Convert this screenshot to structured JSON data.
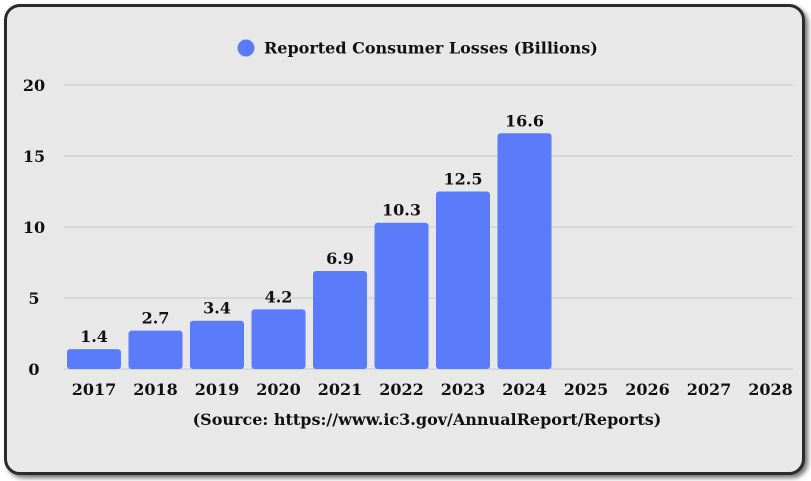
{
  "chart_data": {
    "type": "bar",
    "categories": [
      "2017",
      "2018",
      "2019",
      "2020",
      "2021",
      "2022",
      "2023",
      "2024",
      "2025",
      "2026",
      "2027",
      "2028"
    ],
    "values": [
      1.4,
      2.7,
      3.4,
      4.2,
      6.9,
      10.3,
      12.5,
      16.6,
      null,
      null,
      null,
      null
    ],
    "value_labels": [
      "1.4",
      "2.7",
      "3.4",
      "4.2",
      "6.9",
      "10.3",
      "12.5",
      "16.6",
      "",
      "",
      "",
      ""
    ],
    "series": [
      {
        "name": "Reported Consumer Losses (Billions)",
        "color": "#5b7cfa"
      }
    ],
    "yticks": [
      "0",
      "5",
      "10",
      "15",
      "20"
    ],
    "ylim": [
      0,
      20
    ],
    "xlabel": "(Source: https://www.ic3.gov/AnnualReport/Reports)",
    "ylabel": "",
    "grid": true,
    "legend_position": "top-center",
    "colors": {
      "bar": "#5b7cfa",
      "background": "#e8e8e8",
      "grid": "#c8c8c8",
      "border": "#2b2b2b"
    }
  }
}
